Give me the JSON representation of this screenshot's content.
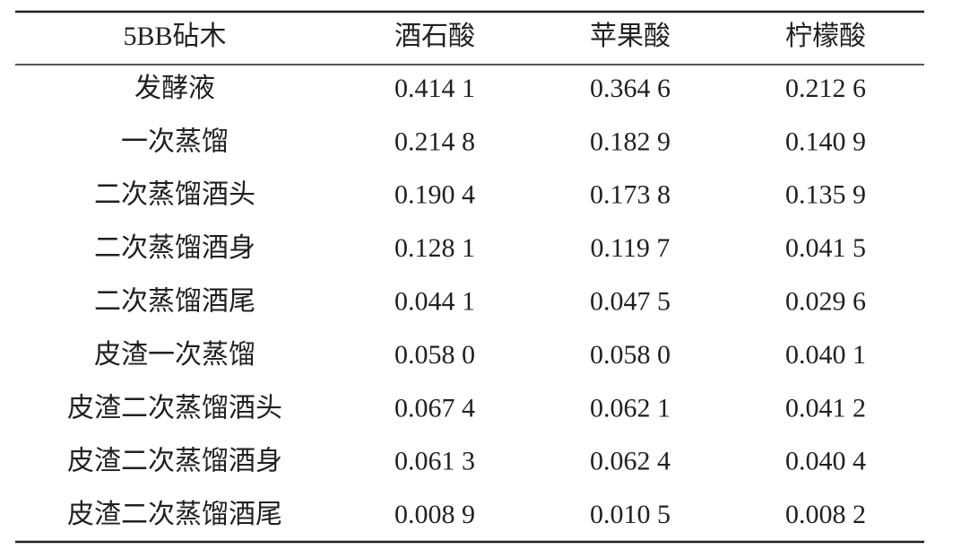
{
  "table": {
    "header": [
      "5BB砧木",
      "酒石酸",
      "苹果酸",
      "柠檬酸"
    ],
    "rows": [
      [
        "发酵液",
        "0.414 1",
        "0.364 6",
        "0.212 6"
      ],
      [
        "一次蒸馏",
        "0.214 8",
        "0.182 9",
        "0.140 9"
      ],
      [
        "二次蒸馏酒头",
        "0.190 4",
        "0.173 8",
        "0.135 9"
      ],
      [
        "二次蒸馏酒身",
        "0.128 1",
        "0.119 7",
        "0.041 5"
      ],
      [
        "二次蒸馏酒尾",
        "0.044 1",
        "0.047 5",
        "0.029 6"
      ],
      [
        "皮渣一次蒸馏",
        "0.058 0",
        "0.058 0",
        "0.040 1"
      ],
      [
        "皮渣二次蒸馏酒头",
        "0.067 4",
        "0.062 1",
        "0.041 2"
      ],
      [
        "皮渣二次蒸馏酒身",
        "0.061 3",
        "0.062 4",
        "0.040 4"
      ],
      [
        "皮渣二次蒸馏酒尾",
        "0.008 9",
        "0.010 5",
        "0.008 2"
      ]
    ]
  }
}
